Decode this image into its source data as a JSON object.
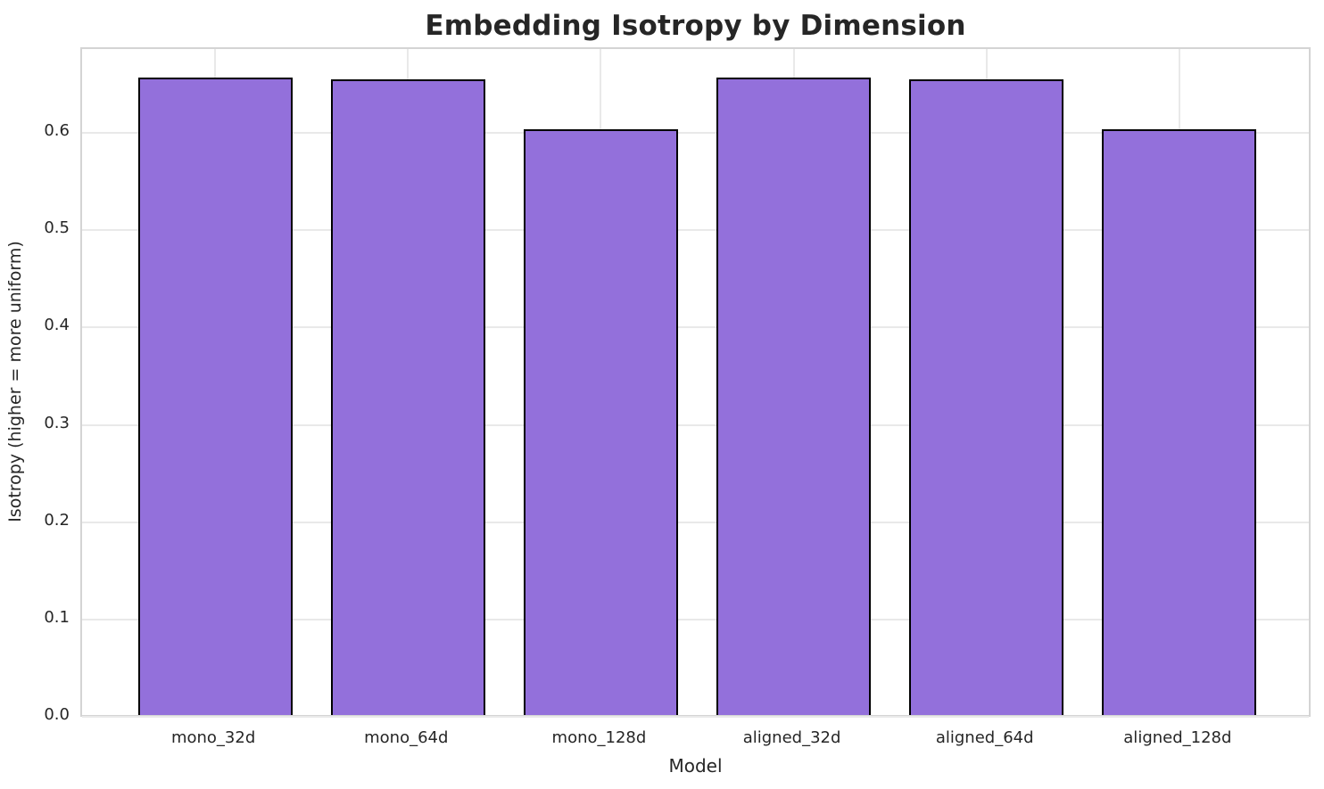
{
  "title": "Embedding Isotropy by Dimension",
  "chart_data": {
    "type": "bar",
    "title": "Embedding Isotropy by Dimension",
    "xlabel": "Model",
    "ylabel": "Isotropy (higher = more uniform)",
    "categories": [
      "mono_32d",
      "mono_64d",
      "mono_128d",
      "aligned_32d",
      "aligned_64d",
      "aligned_128d"
    ],
    "values": [
      0.655,
      0.653,
      0.602,
      0.655,
      0.653,
      0.602
    ],
    "ylim": [
      0,
      0.688
    ],
    "yticks": [
      0.0,
      0.1,
      0.2,
      0.3,
      0.4,
      0.5,
      0.6
    ],
    "ytick_labels": [
      "0.0",
      "0.1",
      "0.2",
      "0.3",
      "0.4",
      "0.5",
      "0.6"
    ],
    "grid": true,
    "legend": "none",
    "colors": {
      "bar_fill": "#9370DB",
      "bar_edge": "#000000",
      "grid": "#e9e9e9",
      "spine": "#d4d4d4",
      "text": "#262626",
      "background": "#ffffff"
    }
  }
}
